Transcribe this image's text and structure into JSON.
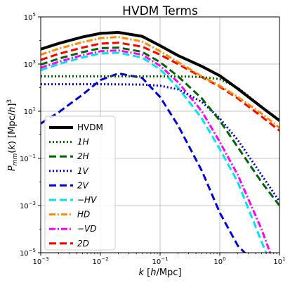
{
  "chart_data": {
    "type": "line",
    "title": "HVDM Terms",
    "xlabel": "k [h/Mpc]",
    "ylabel": "P_mm(k) [Mpc/h]^3",
    "xscale": "log",
    "yscale": "log",
    "xlim": [
      0.001,
      10
    ],
    "ylim": [
      1e-05,
      100000
    ],
    "grid": true,
    "legend_position": "lower-left",
    "x_ticks": [
      {
        "base": "10",
        "exp": "−3"
      },
      {
        "base": "10",
        "exp": "−2"
      },
      {
        "base": "10",
        "exp": "−1"
      },
      {
        "base": "10",
        "exp": "0"
      },
      {
        "base": "10",
        "exp": "1"
      }
    ],
    "y_ticks": [
      {
        "base": "10",
        "exp": "−5"
      },
      {
        "base": "10",
        "exp": "−3"
      },
      {
        "base": "10",
        "exp": "−1"
      },
      {
        "base": "10",
        "exp": "1"
      },
      {
        "base": "10",
        "exp": "3"
      },
      {
        "base": "10",
        "exp": "5"
      }
    ],
    "series": [
      {
        "name": "HVDM",
        "color": "#000000",
        "style": "solid",
        "width": 4,
        "points": [
          [
            0.001,
            4300
          ],
          [
            0.002,
            7500
          ],
          [
            0.005,
            14000
          ],
          [
            0.01,
            20000
          ],
          [
            0.02,
            22000
          ],
          [
            0.05,
            15000
          ],
          [
            0.1,
            6000
          ],
          [
            0.2,
            2300
          ],
          [
            0.5,
            800
          ],
          [
            1,
            320
          ],
          [
            2,
            90
          ],
          [
            5,
            15
          ],
          [
            10,
            4
          ]
        ]
      },
      {
        "name": "1H",
        "color": "#006400",
        "style": "dotted",
        "width": 3,
        "points": [
          [
            0.001,
            300
          ],
          [
            0.01,
            300
          ],
          [
            0.1,
            300
          ],
          [
            0.3,
            295
          ],
          [
            0.5,
            280
          ],
          [
            1,
            230
          ],
          [
            2,
            100
          ],
          [
            5,
            16
          ],
          [
            10,
            4
          ]
        ]
      },
      {
        "name": "2H",
        "color": "#006400",
        "style": "dashed",
        "width": 3,
        "points": [
          [
            0.001,
            950
          ],
          [
            0.002,
            1700
          ],
          [
            0.005,
            3200
          ],
          [
            0.01,
            4700
          ],
          [
            0.02,
            5000
          ],
          [
            0.05,
            3300
          ],
          [
            0.1,
            1200
          ],
          [
            0.2,
            300
          ],
          [
            0.5,
            35
          ],
          [
            1,
            4
          ],
          [
            2,
            0.3
          ],
          [
            5,
            0.01
          ],
          [
            10,
            0.001
          ]
        ]
      },
      {
        "name": "1V",
        "color": "#0000dd",
        "style": "dotted",
        "width": 3,
        "points": [
          [
            0.001,
            140
          ],
          [
            0.01,
            140
          ],
          [
            0.05,
            135
          ],
          [
            0.1,
            120
          ],
          [
            0.2,
            85
          ],
          [
            0.5,
            25
          ],
          [
            1,
            5
          ],
          [
            2,
            0.6
          ],
          [
            5,
            0.02
          ],
          [
            10,
            0.0015
          ]
        ]
      },
      {
        "name": "2V",
        "color": "#0000dd",
        "style": "dashed",
        "width": 3,
        "points": [
          [
            0.001,
            3
          ],
          [
            0.002,
            9
          ],
          [
            0.005,
            50
          ],
          [
            0.01,
            210
          ],
          [
            0.02,
            400
          ],
          [
            0.05,
            260
          ],
          [
            0.1,
            40
          ],
          [
            0.2,
            2.5
          ],
          [
            0.5,
            0.03
          ],
          [
            1,
            0.0005
          ],
          [
            2,
            2e-05
          ],
          [
            3,
            7e-06
          ]
        ]
      },
      {
        "name": "−HV",
        "color": "#00e5ee",
        "style": "dashed",
        "width": 3,
        "points": [
          [
            0.001,
            550
          ],
          [
            0.002,
            1000
          ],
          [
            0.005,
            1900
          ],
          [
            0.01,
            2800
          ],
          [
            0.02,
            3000
          ],
          [
            0.05,
            1900
          ],
          [
            0.1,
            600
          ],
          [
            0.2,
            100
          ],
          [
            0.5,
            5
          ],
          [
            1,
            0.25
          ],
          [
            2,
            0.01
          ],
          [
            5,
            3e-05
          ],
          [
            6,
            1e-05
          ]
        ]
      },
      {
        "name": "HD",
        "color": "#ff8c00",
        "style": "dashdot",
        "width": 3,
        "points": [
          [
            0.001,
            2500
          ],
          [
            0.002,
            4500
          ],
          [
            0.005,
            8500
          ],
          [
            0.01,
            12500
          ],
          [
            0.02,
            14000
          ],
          [
            0.05,
            9000
          ],
          [
            0.1,
            3500
          ],
          [
            0.2,
            1200
          ],
          [
            0.5,
            300
          ],
          [
            1,
            120
          ],
          [
            2,
            40
          ],
          [
            5,
            8
          ],
          [
            10,
            2
          ]
        ]
      },
      {
        "name": "−VD",
        "color": "#ff00ff",
        "style": "dashdot",
        "width": 3,
        "points": [
          [
            0.001,
            700
          ],
          [
            0.002,
            1250
          ],
          [
            0.005,
            2400
          ],
          [
            0.01,
            3500
          ],
          [
            0.02,
            3800
          ],
          [
            0.05,
            2500
          ],
          [
            0.1,
            850
          ],
          [
            0.2,
            170
          ],
          [
            0.5,
            10
          ],
          [
            1,
            0.5
          ],
          [
            2,
            0.02
          ],
          [
            5,
            0.0001
          ],
          [
            7,
            1e-05
          ]
        ]
      },
      {
        "name": "2D",
        "color": "#ff0000",
        "style": "dashed",
        "width": 3,
        "points": [
          [
            0.001,
            1500
          ],
          [
            0.002,
            2700
          ],
          [
            0.005,
            5000
          ],
          [
            0.01,
            7400
          ],
          [
            0.02,
            8000
          ],
          [
            0.05,
            5500
          ],
          [
            0.1,
            2500
          ],
          [
            0.2,
            1000
          ],
          [
            0.5,
            280
          ],
          [
            1,
            110
          ],
          [
            2,
            35
          ],
          [
            5,
            6
          ],
          [
            10,
            1.5
          ]
        ]
      }
    ],
    "legend_labels": [
      "HVDM",
      "1H",
      "2H",
      "1V",
      "2V",
      "−HV",
      "HD",
      "−VD",
      "2D"
    ]
  }
}
